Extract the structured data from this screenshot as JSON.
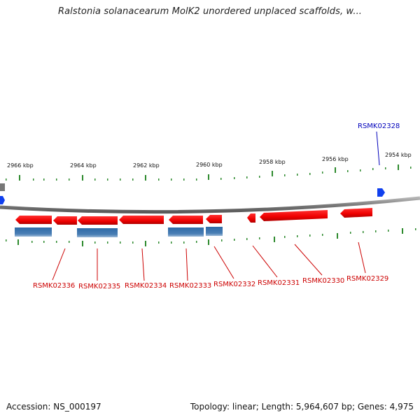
{
  "title": "Ralstonia solanacearum MolK2 unordered unplaced scaffolds, w...",
  "scale_labels": [
    "2966 kbp",
    "2964 kbp",
    "2962 kbp",
    "2960 kbp",
    "2958 kbp",
    "2956 kbp",
    "2954 kbp"
  ],
  "gene_labels": [
    "RSMK02336",
    "RSMK02335",
    "RSMK02334",
    "RSMK02333",
    "RSMK02332",
    "RSMK02331",
    "RSMK02330",
    "RSMK02329"
  ],
  "highlight_label": "RSMK02328",
  "footer": {
    "accession": "Accession: NS_000197",
    "summary": "Topology: linear; Length: 5,964,607 bp; Genes: 4,975"
  },
  "colors": {
    "gene_red": "#ee0000",
    "gene_red_dark": "#bb0000",
    "feature_blue": "#4a7fb5",
    "label_red": "#cc0000",
    "label_blue": "#0000bb",
    "tick_green": "#2d8a2d",
    "backbone": "#888888"
  }
}
